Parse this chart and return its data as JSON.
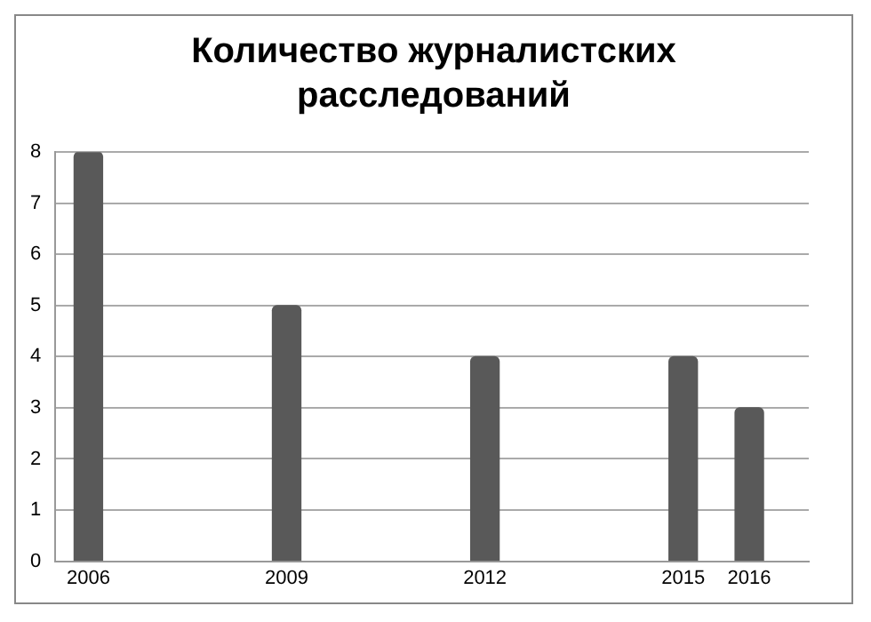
{
  "chart_data": {
    "type": "bar",
    "title": "Количество журналистских расследований",
    "x": [
      2006,
      2009,
      2012,
      2015,
      2016
    ],
    "values": [
      8,
      5,
      4,
      4,
      3
    ],
    "color": "#595959",
    "xlim": [
      2005.5,
      2016.9
    ],
    "xticks": [
      2006,
      2009,
      2012,
      2015,
      2016
    ],
    "ylim": [
      0,
      8
    ],
    "yticks": [
      0,
      1,
      2,
      3,
      4,
      5,
      6,
      7,
      8
    ],
    "grid": "y",
    "legend": false
  }
}
